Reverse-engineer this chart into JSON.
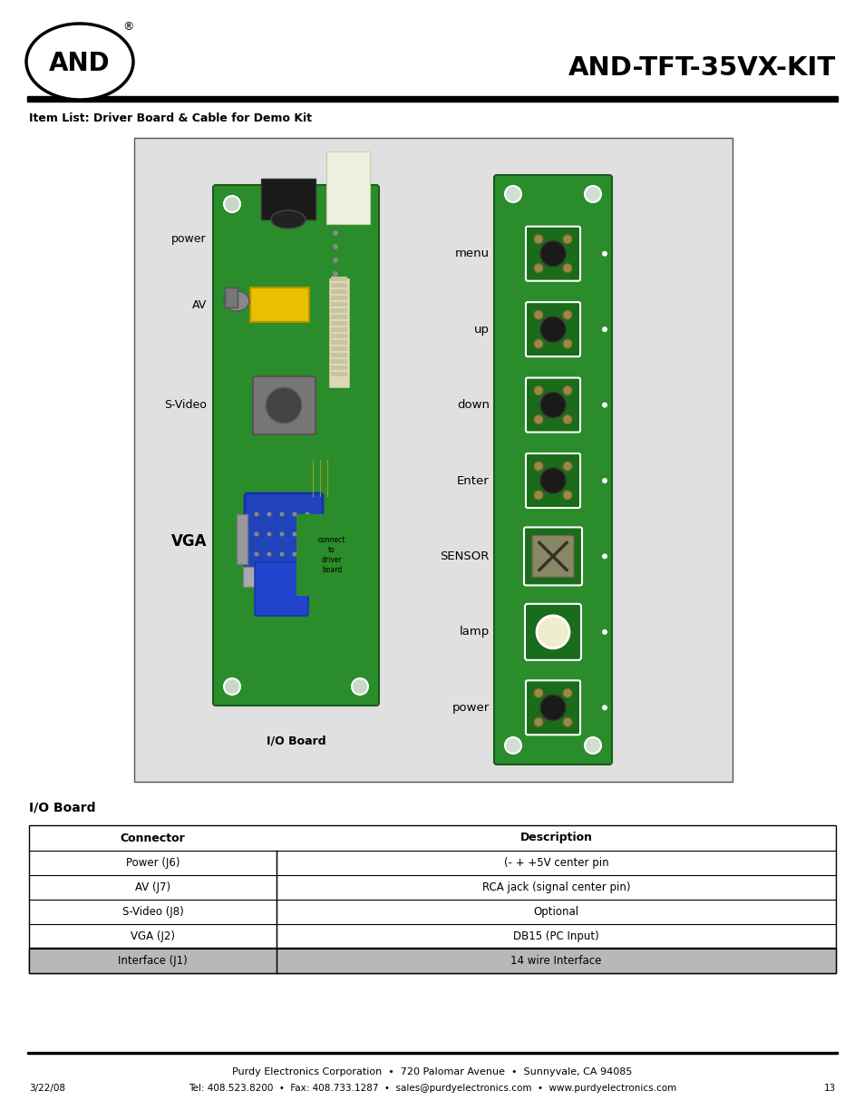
{
  "title": "AND-TFT-35VX-KIT",
  "item_list_label": "Item List: Driver Board & Cable for Demo Kit",
  "io_board_label": "I/O Board",
  "table_header": [
    "Connector",
    "Description"
  ],
  "table_rows": [
    [
      "Power (J6)",
      "(- + +5V center pin"
    ],
    [
      "AV (J7)",
      "RCA jack (signal center pin)"
    ],
    [
      "S-Video (J8)",
      "Optional"
    ],
    [
      "VGA (J2)",
      "DB15 (PC Input)"
    ],
    [
      "Interface (J1)",
      "14 wire Interface"
    ]
  ],
  "footer_line1": "Purdy Electronics Corporation  •  720 Palomar Avenue  •  Sunnyvale, CA 94085",
  "footer_line2": "Tel: 408.523.8200  •  Fax: 408.733.1287  •  sales@purdyelectronics.com  •  www.purdyelectronics.com",
  "footer_date": "3/22/08",
  "footer_page": "13",
  "bg_color": "#ffffff",
  "table_header_bg": "#b8b8b8",
  "pcb_green": "#2a8c2a",
  "pcb_dark_green": "#1a6b1a",
  "img_bg": "#e8e8e8"
}
